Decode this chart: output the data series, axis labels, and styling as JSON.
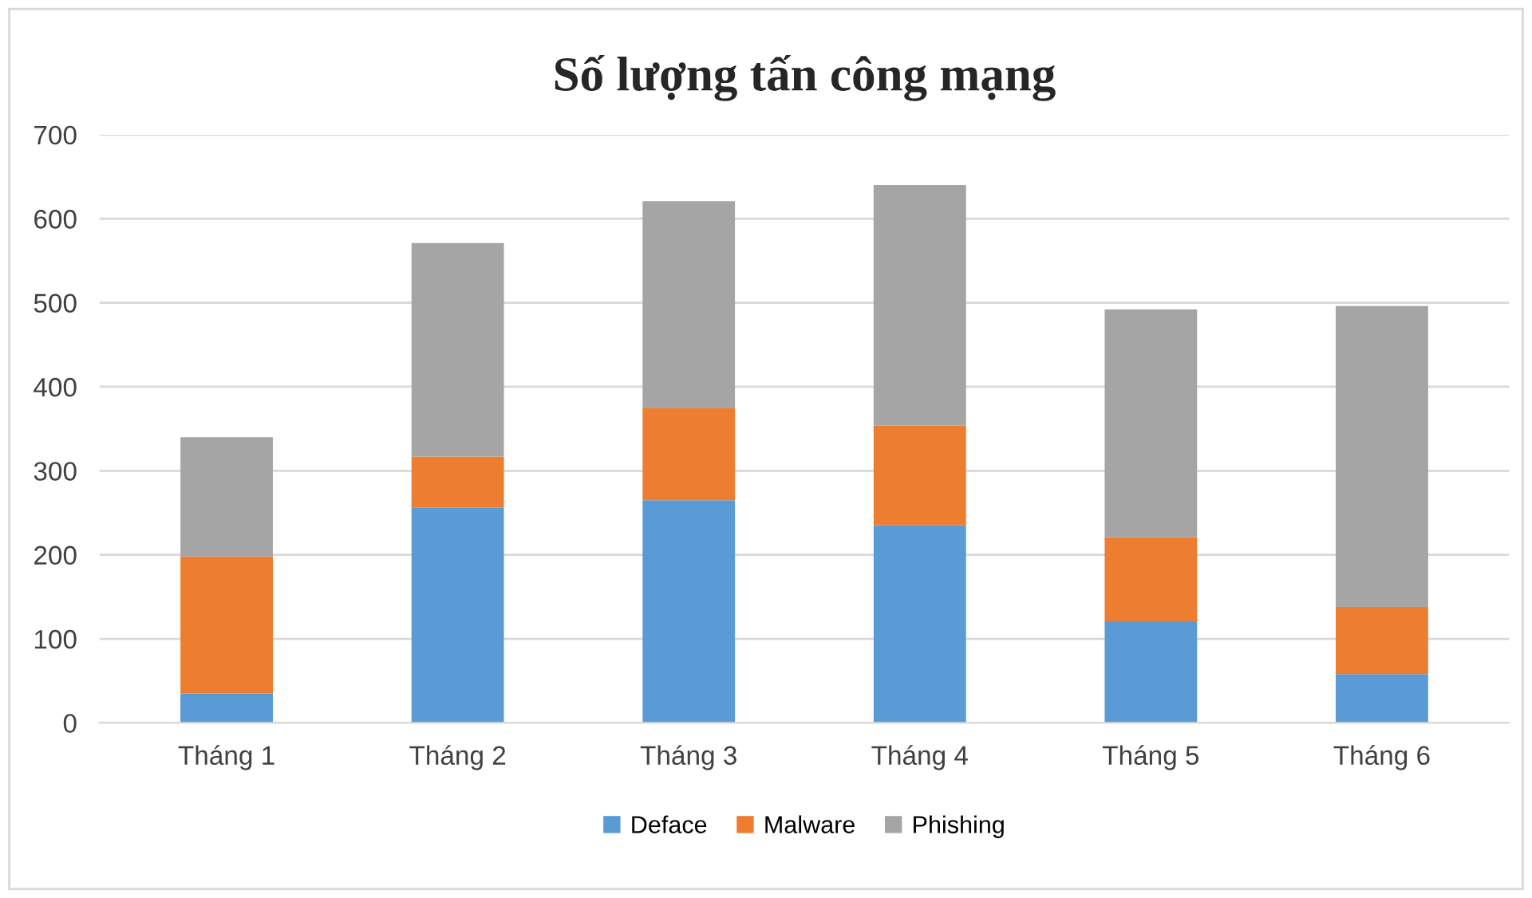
{
  "chart_data": {
    "type": "bar",
    "title": "Số lượng tấn công mạng",
    "categories": [
      "Tháng 1",
      "Tháng 2",
      "Tháng 3",
      "Tháng 4",
      "Tháng 5",
      "Tháng 6"
    ],
    "stacked": true,
    "series": [
      {
        "name": "Deface",
        "color": "#5b9bd5",
        "values": [
          35,
          256,
          265,
          235,
          121,
          58
        ]
      },
      {
        "name": "Malware",
        "color": "#ed7d31",
        "values": [
          163,
          61,
          110,
          119,
          100,
          80
        ]
      },
      {
        "name": "Phishing",
        "color": "#a5a5a5",
        "values": [
          142,
          254,
          246,
          286,
          271,
          358
        ]
      }
    ],
    "ylim": [
      0,
      700
    ],
    "yticks": [
      0,
      100,
      200,
      300,
      400,
      500,
      600,
      700
    ],
    "grid": "y",
    "legend": "bottom"
  }
}
